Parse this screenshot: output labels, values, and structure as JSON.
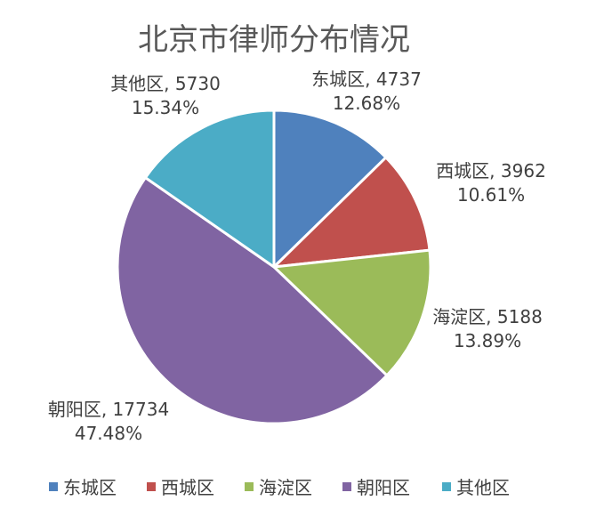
{
  "chart_data": {
    "type": "pie",
    "title": "北京市律师分布情况",
    "start_angle_deg": 0,
    "direction": "clockwise",
    "slices": [
      {
        "name": "东城区",
        "value": 4737,
        "percent": "12.68%",
        "color": "#4F81BD"
      },
      {
        "name": "西城区",
        "value": 3962,
        "percent": "10.61%",
        "color": "#C0504D"
      },
      {
        "name": "海淀区",
        "value": 5188,
        "percent": "13.89%",
        "color": "#9BBB59"
      },
      {
        "name": "朝阳区",
        "value": 17734,
        "percent": "47.48%",
        "color": "#8064A2"
      },
      {
        "name": "其他区",
        "value": 5730,
        "percent": "15.34%",
        "color": "#4BACC6"
      }
    ],
    "legend": {
      "position": "bottom",
      "items": [
        "东城区",
        "西城区",
        "海淀区",
        "朝阳区",
        "其他区"
      ]
    }
  }
}
